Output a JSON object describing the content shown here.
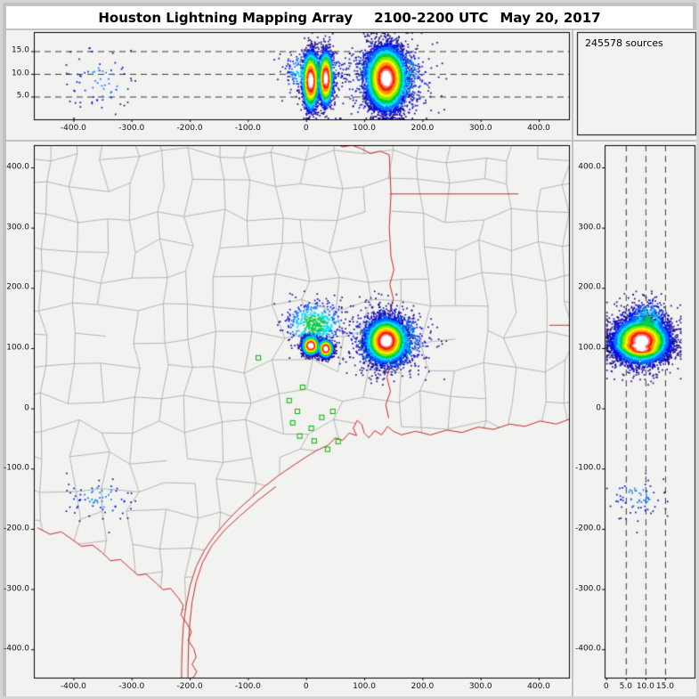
{
  "stats": {
    "sources_label": "245578 sources"
  },
  "colors": {
    "panel_bg": "#f2f2f0",
    "window_bg": "#c2c2c2",
    "titlebar_bg": "#ffffff",
    "county_line": "#a2a2a2",
    "state_line": "#cc2a2a",
    "station": "#00b400",
    "dashed_line": "#3a3a3a",
    "plot_border": "#000000",
    "tick_label": "#111111"
  },
  "chart_data": {
    "type": "scatter",
    "title": "Houston Lightning Mapping Array",
    "time_utc": "2100-2200 UTC",
    "date": "May 20, 2017",
    "total_sources": 245578,
    "legend_position": "none",
    "grid": false,
    "panels": {
      "top_ew_altitude": {
        "description": "East-West distance (km) vs altitude (km)",
        "xlim_km": [
          -468,
          452
        ],
        "alt_lim_km": [
          0,
          19.2
        ],
        "x_ticks": {
          "values": [
            -400,
            -300,
            -200,
            -100,
            0,
            100,
            200,
            300,
            400
          ],
          "labels": [
            "-400.0",
            "-300.0",
            "-200.0",
            "-100.0",
            "0",
            "100.0",
            "200.0",
            "300.0",
            "400.0"
          ]
        },
        "alt_ticks": {
          "values": [
            15,
            10,
            5
          ],
          "labels": [
            "15.0",
            "10.0",
            "5.0"
          ]
        },
        "dashed_lines_alt_km": [
          5,
          10,
          15
        ]
      },
      "plan_view": {
        "description": "Plan view, East-West km vs North-South km, Texas county map",
        "xlim_km": [
          -468,
          452
        ],
        "ylim_km": [
          -447,
          437
        ],
        "x_ticks": {
          "values": [
            -400,
            -300,
            -200,
            -100,
            0,
            100,
            200,
            300,
            400
          ],
          "labels": [
            "-400.0",
            "-300.0",
            "-200.0",
            "-100.0",
            "0",
            "100.0",
            "200.0",
            "300.0",
            "400.0"
          ]
        },
        "y_ticks": {
          "values": [
            400,
            300,
            200,
            100,
            0,
            -100,
            -200,
            -300,
            -400
          ],
          "labels": [
            "400.0",
            "300.0",
            "200.0",
            "100.0",
            "0",
            "-100.0",
            "-200.0",
            "-300.0",
            "-400.0"
          ]
        }
      },
      "right_ns_altitude": {
        "description": "Altitude (km) vs North-South distance (km)",
        "alt_lim_km": [
          -0.4,
          22.5
        ],
        "ylim_km": [
          -447,
          437
        ],
        "alt_ticks": {
          "values": [
            0,
            5,
            10,
            15
          ],
          "labels": [
            "0",
            "5.0",
            "10.0",
            "15.0"
          ]
        },
        "y_ticks": {
          "values": [
            400,
            300,
            200,
            100,
            0,
            -100,
            -200,
            -300,
            -400
          ],
          "labels": [
            "400.0",
            "300.0",
            "200.0",
            "100.0",
            "0",
            "-100.0",
            "-200.0",
            "-300.0",
            "-400.0"
          ]
        },
        "dashed_lines_alt_km": [
          5,
          10,
          15
        ]
      }
    },
    "source_clusters": [
      {
        "name": "west-storm-core-west",
        "x_km": 8,
        "y_km": 104,
        "alt_km": 8.5,
        "sx_km": 6.5,
        "sy_km": 7,
        "salt_km": 2.9,
        "count": 3200,
        "weight": 1.0
      },
      {
        "name": "west-storm-core-east",
        "x_km": 34,
        "y_km": 99,
        "alt_km": 9,
        "sx_km": 5.5,
        "sy_km": 6.5,
        "salt_km": 2.7,
        "count": 2400,
        "weight": 0.98
      },
      {
        "name": "west-storm-anvil",
        "x_km": 14,
        "y_km": 140,
        "alt_km": 10.5,
        "sx_km": 26,
        "sy_km": 20,
        "salt_km": 2.4,
        "count": 520,
        "weight": 0.3
      },
      {
        "name": "east-storm-core",
        "x_km": 138,
        "y_km": 112,
        "alt_km": 9,
        "sx_km": 15.5,
        "sy_km": 16,
        "salt_km": 3.1,
        "count": 10000,
        "weight": 1.0
      },
      {
        "name": "east-storm-periphery",
        "x_km": 140,
        "y_km": 112,
        "alt_km": 9,
        "sx_km": 33,
        "sy_km": 27,
        "salt_km": 4.3,
        "count": 900,
        "weight": 0.3
      },
      {
        "name": "distant-noise-southwest",
        "x_km": -352,
        "y_km": -148,
        "alt_km": 8,
        "sx_km": 32,
        "sy_km": 17,
        "salt_km": 3.8,
        "count": 70,
        "weight": 0.13
      }
    ],
    "stations_km": [
      [
        -82,
        84
      ],
      [
        -6,
        35
      ],
      [
        -29,
        13
      ],
      [
        -15,
        -5
      ],
      [
        -23,
        -24
      ],
      [
        9,
        -33
      ],
      [
        -11,
        -46
      ],
      [
        14,
        -54
      ],
      [
        46,
        -5
      ],
      [
        55,
        -55
      ],
      [
        37,
        -68
      ],
      [
        27,
        -15
      ]
    ],
    "colormap": [
      "#1c0b8a",
      "#0011ee",
      "#0077ff",
      "#00e0ff",
      "#00cc44",
      "#77ee00",
      "#ffee00",
      "#ff9900",
      "#ff1a00",
      "#ff7777",
      "#ffffff"
    ],
    "basemap": {
      "coast": [
        [
          458,
          -16
        ],
        [
          430,
          -26
        ],
        [
          402,
          -21
        ],
        [
          376,
          -30
        ],
        [
          350,
          -26
        ],
        [
          322,
          -35
        ],
        [
          296,
          -31
        ],
        [
          268,
          -40
        ],
        [
          242,
          -36
        ],
        [
          214,
          -44
        ],
        [
          188,
          -38
        ],
        [
          164,
          -44
        ],
        [
          150,
          -38
        ],
        [
          140,
          -30
        ],
        [
          130,
          -44
        ],
        [
          118,
          -37
        ],
        [
          108,
          -49
        ],
        [
          100,
          -41
        ],
        [
          96,
          -27
        ],
        [
          88,
          -20
        ],
        [
          81,
          -33
        ],
        [
          87,
          -45
        ],
        [
          74,
          -41
        ],
        [
          63,
          -53
        ],
        [
          50,
          -49
        ],
        [
          38,
          -61
        ],
        [
          18,
          -70
        ],
        [
          -2,
          -82
        ],
        [
          -24,
          -96
        ],
        [
          -48,
          -112
        ],
        [
          -72,
          -130
        ],
        [
          -96,
          -150
        ],
        [
          -118,
          -169
        ],
        [
          -139,
          -190
        ],
        [
          -158,
          -212
        ],
        [
          -175,
          -236
        ],
        [
          -189,
          -263
        ],
        [
          -199,
          -293
        ],
        [
          -206,
          -326
        ],
        [
          -211,
          -361
        ],
        [
          -213,
          -396
        ],
        [
          -214,
          -430
        ],
        [
          -214,
          -450
        ]
      ],
      "barrier_island": [
        [
          -52,
          -130
        ],
        [
          -82,
          -152
        ],
        [
          -112,
          -177
        ],
        [
          -140,
          -202
        ],
        [
          -162,
          -228
        ],
        [
          -178,
          -256
        ],
        [
          -189,
          -288
        ],
        [
          -196,
          -322
        ],
        [
          -200,
          -358
        ],
        [
          -202,
          -394
        ],
        [
          -203,
          -430
        ],
        [
          -203,
          -450
        ]
      ],
      "rio_grande": [
        [
          -462,
          -198
        ],
        [
          -440,
          -209
        ],
        [
          -421,
          -205
        ],
        [
          -403,
          -217
        ],
        [
          -386,
          -229
        ],
        [
          -367,
          -227
        ],
        [
          -351,
          -239
        ],
        [
          -336,
          -253
        ],
        [
          -319,
          -251
        ],
        [
          -303,
          -265
        ],
        [
          -289,
          -277
        ],
        [
          -275,
          -275
        ],
        [
          -259,
          -289
        ],
        [
          -246,
          -301
        ],
        [
          -233,
          -299
        ],
        [
          -221,
          -313
        ],
        [
          -211,
          -327
        ],
        [
          -215,
          -343
        ],
        [
          -205,
          -357
        ],
        [
          -197,
          -371
        ],
        [
          -203,
          -385
        ],
        [
          -193,
          -399
        ],
        [
          -189,
          -413
        ],
        [
          -196,
          -425
        ],
        [
          -188,
          -437
        ],
        [
          -193,
          -446
        ],
        [
          -207,
          -452
        ]
      ],
      "tx_la_border": [
        [
          142,
          -16
        ],
        [
          137,
          6
        ],
        [
          145,
          28
        ],
        [
          139,
          52
        ],
        [
          147,
          78
        ],
        [
          141,
          104
        ],
        [
          149,
          130
        ],
        [
          143,
          156
        ],
        [
          150,
          182
        ],
        [
          144,
          206
        ],
        [
          151,
          230
        ],
        [
          146,
          252
        ],
        [
          143,
          300
        ],
        [
          146,
          356
        ],
        [
          143,
          421
        ]
      ],
      "red_river": [
        [
          143,
          421
        ],
        [
          127,
          427
        ],
        [
          111,
          423
        ],
        [
          95,
          431
        ],
        [
          79,
          437
        ],
        [
          63,
          434
        ],
        [
          48,
          441
        ]
      ],
      "ar_la_border": [
        [
          144,
          356
        ],
        [
          365,
          356
        ]
      ],
      "la_ms_border": [
        [
          418,
          138
        ],
        [
          465,
          138
        ]
      ]
    }
  }
}
